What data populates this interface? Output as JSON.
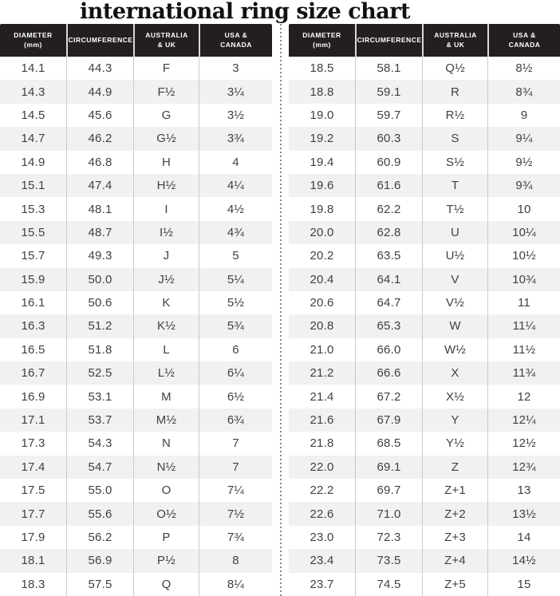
{
  "title": "international ring size chart",
  "header_columns": [
    {
      "line1": "DIAMETER",
      "line2": "(mm)"
    },
    {
      "line1": "CIRCUMFERENCE",
      "line2": ""
    },
    {
      "line1": "AUSTRALIA",
      "line2": "& UK"
    },
    {
      "line1": "USA &",
      "line2": "CANADA"
    }
  ],
  "colors": {
    "header_bg": "#231f20",
    "header_text": "#ffffff",
    "body_text": "#414042",
    "alt_row_bg": "#f0f1f1",
    "grid_line": "#cbcbcb",
    "divider_dots": "#8a8a8a"
  },
  "chart_data": {
    "type": "table",
    "title": "international ring size chart",
    "columns": [
      "Diameter (mm)",
      "Circumference",
      "Australia & UK",
      "USA & Canada"
    ],
    "tables": {
      "left": {
        "rows": [
          [
            "14.1",
            "44.3",
            "F",
            "3"
          ],
          [
            "14.3",
            "44.9",
            "F½",
            "3¼"
          ],
          [
            "14.5",
            "45.6",
            "G",
            "3½"
          ],
          [
            "14.7",
            "46.2",
            "G½",
            "3¾"
          ],
          [
            "14.9",
            "46.8",
            "H",
            "4"
          ],
          [
            "15.1",
            "47.4",
            "H½",
            "4¼"
          ],
          [
            "15.3",
            "48.1",
            "I",
            "4½"
          ],
          [
            "15.5",
            "48.7",
            "I½",
            "4¾"
          ],
          [
            "15.7",
            "49.3",
            "J",
            "5"
          ],
          [
            "15.9",
            "50.0",
            "J½",
            "5¼"
          ],
          [
            "16.1",
            "50.6",
            "K",
            "5½"
          ],
          [
            "16.3",
            "51.2",
            "K½",
            "5¾"
          ],
          [
            "16.5",
            "51.8",
            "L",
            "6"
          ],
          [
            "16.7",
            "52.5",
            "L½",
            "6¼"
          ],
          [
            "16.9",
            "53.1",
            "M",
            "6½"
          ],
          [
            "17.1",
            "53.7",
            "M½",
            "6¾"
          ],
          [
            "17.3",
            "54.3",
            "N",
            "7"
          ],
          [
            "17.4",
            "54.7",
            "N½",
            "7"
          ],
          [
            "17.5",
            "55.0",
            "O",
            "7¼"
          ],
          [
            "17.7",
            "55.6",
            "O½",
            "7½"
          ],
          [
            "17.9",
            "56.2",
            "P",
            "7¾"
          ],
          [
            "18.1",
            "56.9",
            "P½",
            "8"
          ],
          [
            "18.3",
            "57.5",
            "Q",
            "8¼"
          ]
        ]
      },
      "right": {
        "rows": [
          [
            "18.5",
            "58.1",
            "Q½",
            "8½"
          ],
          [
            "18.8",
            "59.1",
            "R",
            "8¾"
          ],
          [
            "19.0",
            "59.7",
            "R½",
            "9"
          ],
          [
            "19.2",
            "60.3",
            "S",
            "9¼"
          ],
          [
            "19.4",
            "60.9",
            "S½",
            "9½"
          ],
          [
            "19.6",
            "61.6",
            "T",
            "9¾"
          ],
          [
            "19.8",
            "62.2",
            "T½",
            "10"
          ],
          [
            "20.0",
            "62.8",
            "U",
            "10¼"
          ],
          [
            "20.2",
            "63.5",
            "U½",
            "10½"
          ],
          [
            "20.4",
            "64.1",
            "V",
            "10¾"
          ],
          [
            "20.6",
            "64.7",
            "V½",
            "11"
          ],
          [
            "20.8",
            "65.3",
            "W",
            "11¼"
          ],
          [
            "21.0",
            "66.0",
            "W½",
            "11½"
          ],
          [
            "21.2",
            "66.6",
            "X",
            "11¾"
          ],
          [
            "21.4",
            "67.2",
            "X½",
            "12"
          ],
          [
            "21.6",
            "67.9",
            "Y",
            "12¼"
          ],
          [
            "21.8",
            "68.5",
            "Y½",
            "12½"
          ],
          [
            "22.0",
            "69.1",
            "Z",
            "12¾"
          ],
          [
            "22.2",
            "69.7",
            "Z+1",
            "13"
          ],
          [
            "22.6",
            "71.0",
            "Z+2",
            "13½"
          ],
          [
            "23.0",
            "72.3",
            "Z+3",
            "14"
          ],
          [
            "23.4",
            "73.5",
            "Z+4",
            "14½"
          ],
          [
            "23.7",
            "74.5",
            "Z+5",
            "15"
          ]
        ]
      }
    }
  }
}
